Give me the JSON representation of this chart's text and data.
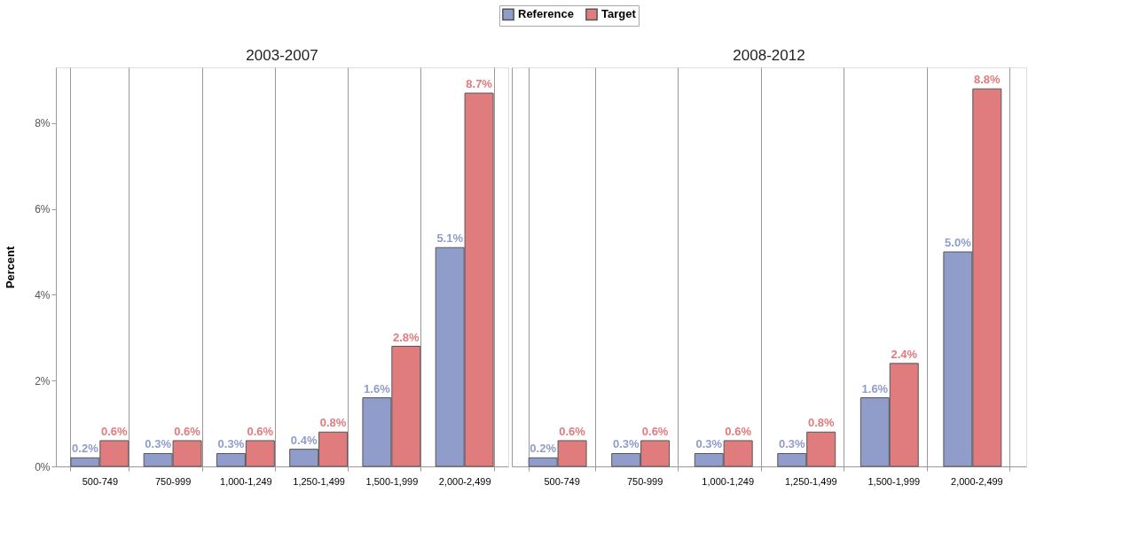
{
  "chart_data": [
    {
      "type": "bar",
      "title": "2003-2007",
      "ylabel": "Percent",
      "categories": [
        "500-749",
        "750-999",
        "1,000-1,249",
        "1,250-1,499",
        "1,500-1,999",
        "2,000-2,499"
      ],
      "series": [
        {
          "name": "Reference",
          "color": "#909dcb",
          "values": [
            0.2,
            0.3,
            0.3,
            0.4,
            1.6,
            5.1
          ],
          "value_labels": [
            "0.2%",
            "0.3%",
            "0.3%",
            "0.4%",
            "1.6%",
            "5.1%"
          ]
        },
        {
          "name": "Target",
          "color": "#e07c7e",
          "values": [
            0.6,
            0.6,
            0.6,
            0.8,
            2.8,
            8.7
          ],
          "value_labels": [
            "0.6%",
            "0.6%",
            "0.6%",
            "0.8%",
            "2.8%",
            "8.7%"
          ]
        }
      ],
      "ylim": [
        0,
        9.3
      ],
      "yticks": [
        {
          "value": 0,
          "label": "0%"
        },
        {
          "value": 2,
          "label": "2%"
        },
        {
          "value": 4,
          "label": "4%"
        },
        {
          "value": 6,
          "label": "6%"
        },
        {
          "value": 8,
          "label": "8%"
        }
      ],
      "grid": "x",
      "legend": "top"
    },
    {
      "type": "bar",
      "title": "2008-2012",
      "categories": [
        "500-749",
        "750-999",
        "1,000-1,249",
        "1,250-1,499",
        "1,500-1,999",
        "2,000-2,499"
      ],
      "series": [
        {
          "color": "#909dcb",
          "values": [
            0.2,
            0.3,
            0.3,
            0.3,
            1.6,
            5.0
          ],
          "value_labels": [
            "0.2%",
            "0.3%",
            "0.3%",
            "0.3%",
            "1.6%",
            "5.0%"
          ]
        },
        {
          "color": "#e07c7e",
          "values": [
            0.6,
            0.6,
            0.6,
            0.8,
            2.4,
            8.8
          ],
          "value_labels": [
            "0.6%",
            "0.6%",
            "0.6%",
            "0.8%",
            "2.4%",
            "8.8%"
          ]
        }
      ],
      "ylim": [
        0,
        9.3
      ],
      "grid": "x",
      "tick_labels": "x"
    }
  ]
}
